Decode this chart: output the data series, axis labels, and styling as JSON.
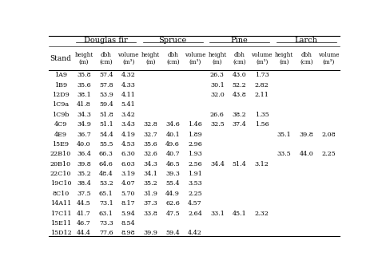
{
  "col_groups": [
    "Douglas fir",
    "Spruce",
    "Pine",
    "Larch"
  ],
  "rows": [
    {
      "stand": "1A9",
      "df": [
        35.8,
        57.4,
        4.32
      ],
      "sp": [
        null,
        null,
        null
      ],
      "pi": [
        26.3,
        43.0,
        1.73
      ],
      "la": [
        null,
        null,
        null
      ]
    },
    {
      "stand": "1B9",
      "df": [
        35.6,
        57.8,
        4.33
      ],
      "sp": [
        null,
        null,
        null
      ],
      "pi": [
        30.1,
        52.2,
        2.82
      ],
      "la": [
        null,
        null,
        null
      ]
    },
    {
      "stand": "12D9",
      "df": [
        38.1,
        53.9,
        4.11
      ],
      "sp": [
        null,
        null,
        null
      ],
      "pi": [
        32.0,
        43.8,
        2.11
      ],
      "la": [
        null,
        null,
        null
      ]
    },
    {
      "stand": "1C9a",
      "df": [
        41.8,
        59.4,
        5.41
      ],
      "sp": [
        null,
        null,
        null
      ],
      "pi": [
        null,
        null,
        null
      ],
      "la": [
        null,
        null,
        null
      ]
    },
    {
      "stand": "1C9b",
      "df": [
        34.3,
        51.8,
        3.42
      ],
      "sp": [
        null,
        null,
        null
      ],
      "pi": [
        26.6,
        38.2,
        1.35
      ],
      "la": [
        null,
        null,
        null
      ]
    },
    {
      "stand": "4C9",
      "df": [
        34.9,
        51.1,
        3.43
      ],
      "sp": [
        32.8,
        34.6,
        1.46
      ],
      "pi": [
        32.5,
        37.4,
        1.56
      ],
      "la": [
        null,
        null,
        null
      ]
    },
    {
      "stand": "4E9",
      "df": [
        36.7,
        54.4,
        4.19
      ],
      "sp": [
        32.7,
        40.1,
        1.89
      ],
      "pi": [
        null,
        null,
        null
      ],
      "la": [
        35.1,
        39.8,
        2.08
      ]
    },
    {
      "stand": "15E9",
      "df": [
        40.0,
        55.5,
        4.53
      ],
      "sp": [
        35.6,
        49.6,
        2.96
      ],
      "pi": [
        null,
        null,
        null
      ],
      "la": [
        null,
        null,
        null
      ]
    },
    {
      "stand": "22B10",
      "df": [
        36.4,
        66.3,
        6.3
      ],
      "sp": [
        32.6,
        40.7,
        1.93
      ],
      "pi": [
        null,
        null,
        null
      ],
      "la": [
        33.5,
        44.0,
        2.25
      ]
    },
    {
      "stand": "20B10",
      "df": [
        39.8,
        64.6,
        6.03
      ],
      "sp": [
        34.3,
        46.5,
        2.56
      ],
      "pi": [
        34.4,
        51.4,
        3.12
      ],
      "la": [
        null,
        null,
        null
      ]
    },
    {
      "stand": "22C10",
      "df": [
        35.2,
        48.4,
        3.19
      ],
      "sp": [
        34.1,
        39.3,
        1.91
      ],
      "pi": [
        null,
        null,
        null
      ],
      "la": [
        null,
        null,
        null
      ]
    },
    {
      "stand": "19C10",
      "df": [
        38.4,
        53.2,
        4.07
      ],
      "sp": [
        35.2,
        55.4,
        3.53
      ],
      "pi": [
        null,
        null,
        null
      ],
      "la": [
        null,
        null,
        null
      ]
    },
    {
      "stand": "8C10",
      "df": [
        37.5,
        65.1,
        5.7
      ],
      "sp": [
        31.9,
        44.9,
        2.25
      ],
      "pi": [
        null,
        null,
        null
      ],
      "la": [
        null,
        null,
        null
      ]
    },
    {
      "stand": "14A11",
      "df": [
        44.5,
        73.1,
        8.17
      ],
      "sp": [
        37.3,
        62.6,
        4.57
      ],
      "pi": [
        null,
        null,
        null
      ],
      "la": [
        null,
        null,
        null
      ]
    },
    {
      "stand": "17C11",
      "df": [
        41.7,
        63.1,
        5.94
      ],
      "sp": [
        33.8,
        47.5,
        2.64
      ],
      "pi": [
        33.1,
        45.1,
        2.32
      ],
      "la": [
        null,
        null,
        null
      ]
    },
    {
      "stand": "15E11",
      "df": [
        46.7,
        73.3,
        8.54
      ],
      "sp": [
        null,
        null,
        null
      ],
      "pi": [
        null,
        null,
        null
      ],
      "la": [
        null,
        null,
        null
      ]
    },
    {
      "stand": "15D12",
      "df": [
        44.4,
        77.6,
        8.98
      ],
      "sp": [
        39.9,
        59.4,
        4.42
      ],
      "pi": [
        null,
        null,
        null
      ],
      "la": [
        null,
        null,
        null
      ]
    }
  ]
}
